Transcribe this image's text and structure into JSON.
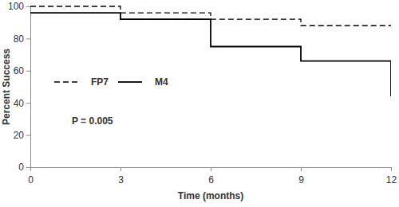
{
  "chart_data": {
    "type": "line",
    "x_label": "Time (months)",
    "y_label": "Percent Success",
    "annotation": "P = 0.005",
    "x": [
      0,
      3,
      6,
      9,
      12
    ],
    "series": [
      {
        "name": "FP7",
        "color": "#000000",
        "line_style": "dashed",
        "values": [
          100,
          96,
          92,
          88,
          88
        ]
      },
      {
        "name": "M4",
        "color": "#000000",
        "line_style": "solid",
        "values": [
          96,
          92,
          75,
          66,
          44
        ]
      }
    ],
    "xlim": [
      0,
      12
    ],
    "xticks": [
      0,
      3,
      6,
      9,
      12
    ],
    "ylim": [
      0,
      100
    ],
    "yticks": [
      0,
      20,
      40,
      60,
      80,
      100
    ],
    "legend": "left",
    "grid": false
  }
}
